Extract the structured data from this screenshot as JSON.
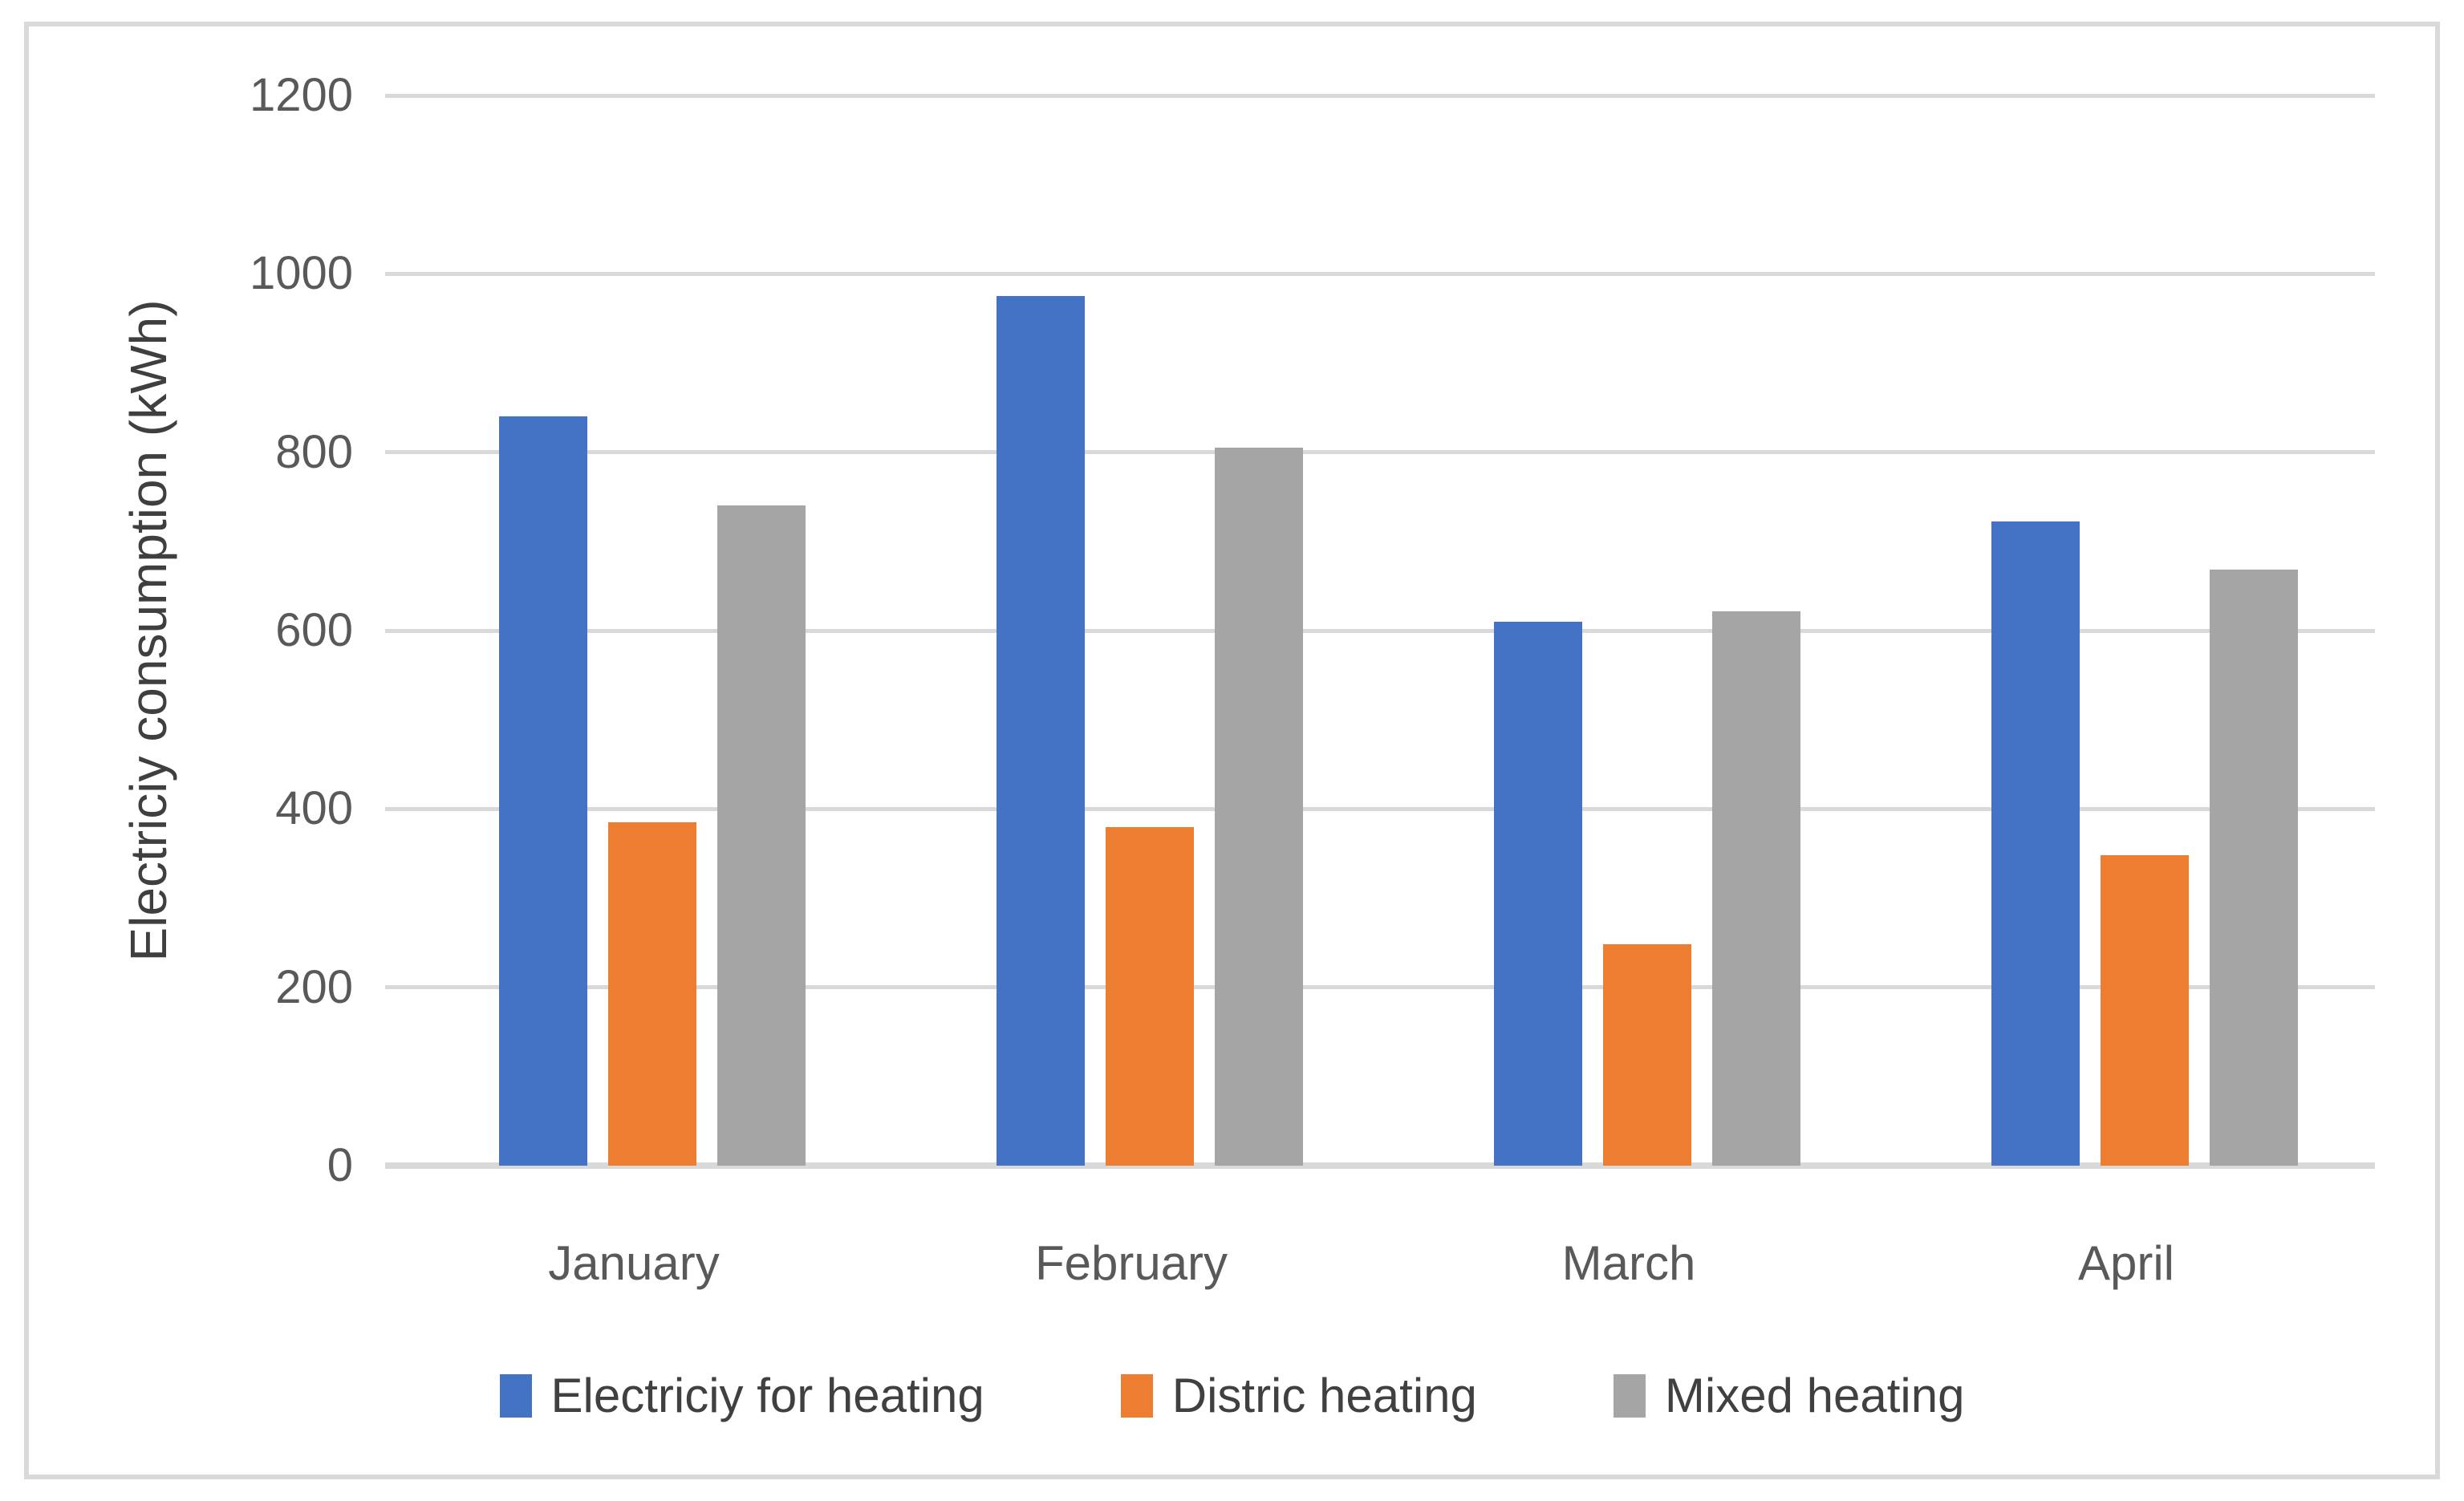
{
  "chart_data": {
    "type": "bar",
    "title": "",
    "categories": [
      "January",
      "February",
      "March",
      "April"
    ],
    "series": [
      {
        "name": "Electriciy for heating",
        "color": "#4472C4",
        "values": [
          840,
          975,
          610,
          722
        ]
      },
      {
        "name": "Distric heating",
        "color": "#ED7D31",
        "values": [
          385,
          380,
          248,
          348
        ]
      },
      {
        "name": "Mixed heating",
        "color": "#A5A5A5",
        "values": [
          740,
          805,
          622,
          668
        ]
      }
    ],
    "xlabel": "",
    "ylabel": "Electriciy consumption (kWh)",
    "ylim": [
      0,
      1200
    ],
    "yticks": [
      0,
      200,
      400,
      600,
      800,
      1000,
      1200
    ],
    "grid": true,
    "legend_position": "bottom",
    "palette": {
      "gridline": "#D9D9D9",
      "axis_line": "#D9D9D9",
      "tick_label": "#595959",
      "axis_title": "#3F3F3F",
      "legend_text": "#404040",
      "chart_border": "#D9D9D9",
      "background": "#FFFFFF"
    }
  }
}
